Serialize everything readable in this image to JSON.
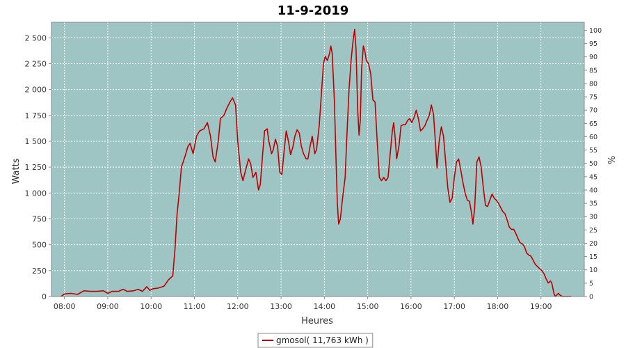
{
  "chart_data": {
    "type": "line",
    "title": "11-9-2019",
    "xlabel": "Heures",
    "ylabel": "Watts",
    "y2label": "%",
    "x_unit": "hours of day",
    "xlim": [
      7.7,
      20.0
    ],
    "ylim": [
      0,
      2650
    ],
    "y2lim": [
      0,
      103
    ],
    "x_ticks": [
      8,
      9,
      10,
      11,
      12,
      13,
      14,
      15,
      16,
      17,
      18,
      19
    ],
    "x_tick_labels": [
      "08:00",
      "09:00",
      "10:00",
      "11:00",
      "12:00",
      "13:00",
      "14:00",
      "15:00",
      "16:00",
      "17:00",
      "18:00",
      "19:00"
    ],
    "y_ticks": [
      0,
      250,
      500,
      750,
      1000,
      1250,
      1500,
      1750,
      2000,
      2250,
      2500
    ],
    "y_tick_labels": [
      "0",
      "250",
      "500",
      "750",
      "1 000",
      "1 250",
      "1 500",
      "1 750",
      "2 000",
      "2 250",
      "2 500"
    ],
    "y2_ticks": [
      0,
      5,
      10,
      15,
      20,
      25,
      30,
      35,
      40,
      45,
      50,
      55,
      60,
      65,
      70,
      75,
      80,
      85,
      90,
      95,
      100
    ],
    "y2_tick_labels": [
      "0",
      "5",
      "10",
      "15",
      "20",
      "25",
      "30",
      "35",
      "40",
      "45",
      "50",
      "55",
      "60",
      "65",
      "70",
      "75",
      "80",
      "85",
      "90",
      "95",
      "100"
    ],
    "grid": true,
    "legend_position": "bottom-center",
    "plot_background": "#9fc4c4",
    "series": [
      {
        "name": "gmosol( 11,763 kWh )",
        "color": "#bb0000",
        "points": [
          [
            7.92,
            0
          ],
          [
            8.0,
            25
          ],
          [
            8.15,
            30
          ],
          [
            8.3,
            20
          ],
          [
            8.45,
            55
          ],
          [
            8.6,
            50
          ],
          [
            8.75,
            50
          ],
          [
            8.9,
            55
          ],
          [
            9.0,
            30
          ],
          [
            9.1,
            50
          ],
          [
            9.25,
            50
          ],
          [
            9.35,
            70
          ],
          [
            9.45,
            50
          ],
          [
            9.6,
            55
          ],
          [
            9.7,
            70
          ],
          [
            9.8,
            50
          ],
          [
            9.9,
            95
          ],
          [
            9.97,
            60
          ],
          [
            10.05,
            75
          ],
          [
            10.15,
            80
          ],
          [
            10.3,
            100
          ],
          [
            10.4,
            160
          ],
          [
            10.5,
            200
          ],
          [
            10.55,
            450
          ],
          [
            10.6,
            800
          ],
          [
            10.65,
            1000
          ],
          [
            10.7,
            1250
          ],
          [
            10.78,
            1350
          ],
          [
            10.85,
            1450
          ],
          [
            10.9,
            1480
          ],
          [
            10.97,
            1380
          ],
          [
            11.05,
            1550
          ],
          [
            11.12,
            1600
          ],
          [
            11.22,
            1620
          ],
          [
            11.3,
            1680
          ],
          [
            11.37,
            1550
          ],
          [
            11.43,
            1350
          ],
          [
            11.48,
            1300
          ],
          [
            11.55,
            1500
          ],
          [
            11.6,
            1720
          ],
          [
            11.68,
            1750
          ],
          [
            11.75,
            1820
          ],
          [
            11.82,
            1880
          ],
          [
            11.88,
            1920
          ],
          [
            11.95,
            1850
          ],
          [
            12.0,
            1500
          ],
          [
            12.07,
            1200
          ],
          [
            12.12,
            1120
          ],
          [
            12.2,
            1250
          ],
          [
            12.25,
            1330
          ],
          [
            12.3,
            1280
          ],
          [
            12.35,
            1150
          ],
          [
            12.42,
            1200
          ],
          [
            12.48,
            1030
          ],
          [
            12.52,
            1080
          ],
          [
            12.58,
            1400
          ],
          [
            12.62,
            1600
          ],
          [
            12.68,
            1620
          ],
          [
            12.72,
            1500
          ],
          [
            12.78,
            1380
          ],
          [
            12.82,
            1420
          ],
          [
            12.87,
            1520
          ],
          [
            12.92,
            1450
          ],
          [
            12.97,
            1200
          ],
          [
            13.02,
            1180
          ],
          [
            13.07,
            1400
          ],
          [
            13.12,
            1600
          ],
          [
            13.17,
            1500
          ],
          [
            13.22,
            1370
          ],
          [
            13.27,
            1440
          ],
          [
            13.32,
            1550
          ],
          [
            13.37,
            1610
          ],
          [
            13.42,
            1580
          ],
          [
            13.47,
            1450
          ],
          [
            13.52,
            1380
          ],
          [
            13.58,
            1330
          ],
          [
            13.62,
            1330
          ],
          [
            13.67,
            1450
          ],
          [
            13.72,
            1550
          ],
          [
            13.78,
            1380
          ],
          [
            13.82,
            1420
          ],
          [
            13.88,
            1650
          ],
          [
            13.93,
            1950
          ],
          [
            13.98,
            2250
          ],
          [
            14.02,
            2320
          ],
          [
            14.07,
            2280
          ],
          [
            14.12,
            2350
          ],
          [
            14.15,
            2420
          ],
          [
            14.18,
            2350
          ],
          [
            14.23,
            1900
          ],
          [
            14.27,
            1300
          ],
          [
            14.3,
            900
          ],
          [
            14.33,
            700
          ],
          [
            14.37,
            750
          ],
          [
            14.42,
            950
          ],
          [
            14.48,
            1150
          ],
          [
            14.52,
            1550
          ],
          [
            14.57,
            2000
          ],
          [
            14.62,
            2300
          ],
          [
            14.67,
            2500
          ],
          [
            14.7,
            2580
          ],
          [
            14.73,
            2400
          ],
          [
            14.77,
            1800
          ],
          [
            14.8,
            1560
          ],
          [
            14.83,
            1700
          ],
          [
            14.86,
            2200
          ],
          [
            14.9,
            2420
          ],
          [
            14.93,
            2380
          ],
          [
            14.97,
            2280
          ],
          [
            15.02,
            2250
          ],
          [
            15.07,
            2150
          ],
          [
            15.12,
            1900
          ],
          [
            15.17,
            1880
          ],
          [
            15.22,
            1500
          ],
          [
            15.27,
            1150
          ],
          [
            15.32,
            1120
          ],
          [
            15.37,
            1150
          ],
          [
            15.42,
            1120
          ],
          [
            15.47,
            1150
          ],
          [
            15.52,
            1380
          ],
          [
            15.57,
            1600
          ],
          [
            15.6,
            1680
          ],
          [
            15.63,
            1550
          ],
          [
            15.67,
            1330
          ],
          [
            15.72,
            1450
          ],
          [
            15.77,
            1650
          ],
          [
            15.82,
            1660
          ],
          [
            15.87,
            1660
          ],
          [
            15.92,
            1700
          ],
          [
            15.97,
            1720
          ],
          [
            16.02,
            1680
          ],
          [
            16.07,
            1730
          ],
          [
            16.12,
            1800
          ],
          [
            16.17,
            1720
          ],
          [
            16.22,
            1600
          ],
          [
            16.27,
            1620
          ],
          [
            16.32,
            1650
          ],
          [
            16.37,
            1700
          ],
          [
            16.42,
            1750
          ],
          [
            16.47,
            1850
          ],
          [
            16.52,
            1760
          ],
          [
            16.57,
            1450
          ],
          [
            16.6,
            1240
          ],
          [
            16.65,
            1500
          ],
          [
            16.7,
            1640
          ],
          [
            16.75,
            1550
          ],
          [
            16.8,
            1300
          ],
          [
            16.85,
            1050
          ],
          [
            16.9,
            910
          ],
          [
            16.95,
            950
          ],
          [
            17.0,
            1150
          ],
          [
            17.05,
            1300
          ],
          [
            17.1,
            1330
          ],
          [
            17.15,
            1220
          ],
          [
            17.2,
            1100
          ],
          [
            17.25,
            1000
          ],
          [
            17.3,
            930
          ],
          [
            17.35,
            920
          ],
          [
            17.4,
            800
          ],
          [
            17.43,
            700
          ],
          [
            17.47,
            850
          ],
          [
            17.52,
            1300
          ],
          [
            17.57,
            1350
          ],
          [
            17.62,
            1250
          ],
          [
            17.67,
            1050
          ],
          [
            17.72,
            880
          ],
          [
            17.77,
            870
          ],
          [
            17.82,
            930
          ],
          [
            17.87,
            990
          ],
          [
            17.92,
            950
          ],
          [
            17.97,
            930
          ],
          [
            18.02,
            900
          ],
          [
            18.07,
            860
          ],
          [
            18.12,
            820
          ],
          [
            18.17,
            800
          ],
          [
            18.22,
            740
          ],
          [
            18.27,
            670
          ],
          [
            18.32,
            650
          ],
          [
            18.37,
            650
          ],
          [
            18.42,
            610
          ],
          [
            18.47,
            560
          ],
          [
            18.52,
            520
          ],
          [
            18.57,
            510
          ],
          [
            18.62,
            480
          ],
          [
            18.67,
            420
          ],
          [
            18.72,
            400
          ],
          [
            18.77,
            390
          ],
          [
            18.82,
            350
          ],
          [
            18.87,
            310
          ],
          [
            18.92,
            290
          ],
          [
            18.97,
            270
          ],
          [
            19.02,
            250
          ],
          [
            19.07,
            220
          ],
          [
            19.12,
            170
          ],
          [
            19.17,
            130
          ],
          [
            19.22,
            150
          ],
          [
            19.25,
            130
          ],
          [
            19.3,
            30
          ],
          [
            19.33,
            0
          ],
          [
            19.4,
            30
          ],
          [
            19.45,
            10
          ],
          [
            19.5,
            0
          ],
          [
            19.7,
            0
          ]
        ]
      }
    ]
  }
}
